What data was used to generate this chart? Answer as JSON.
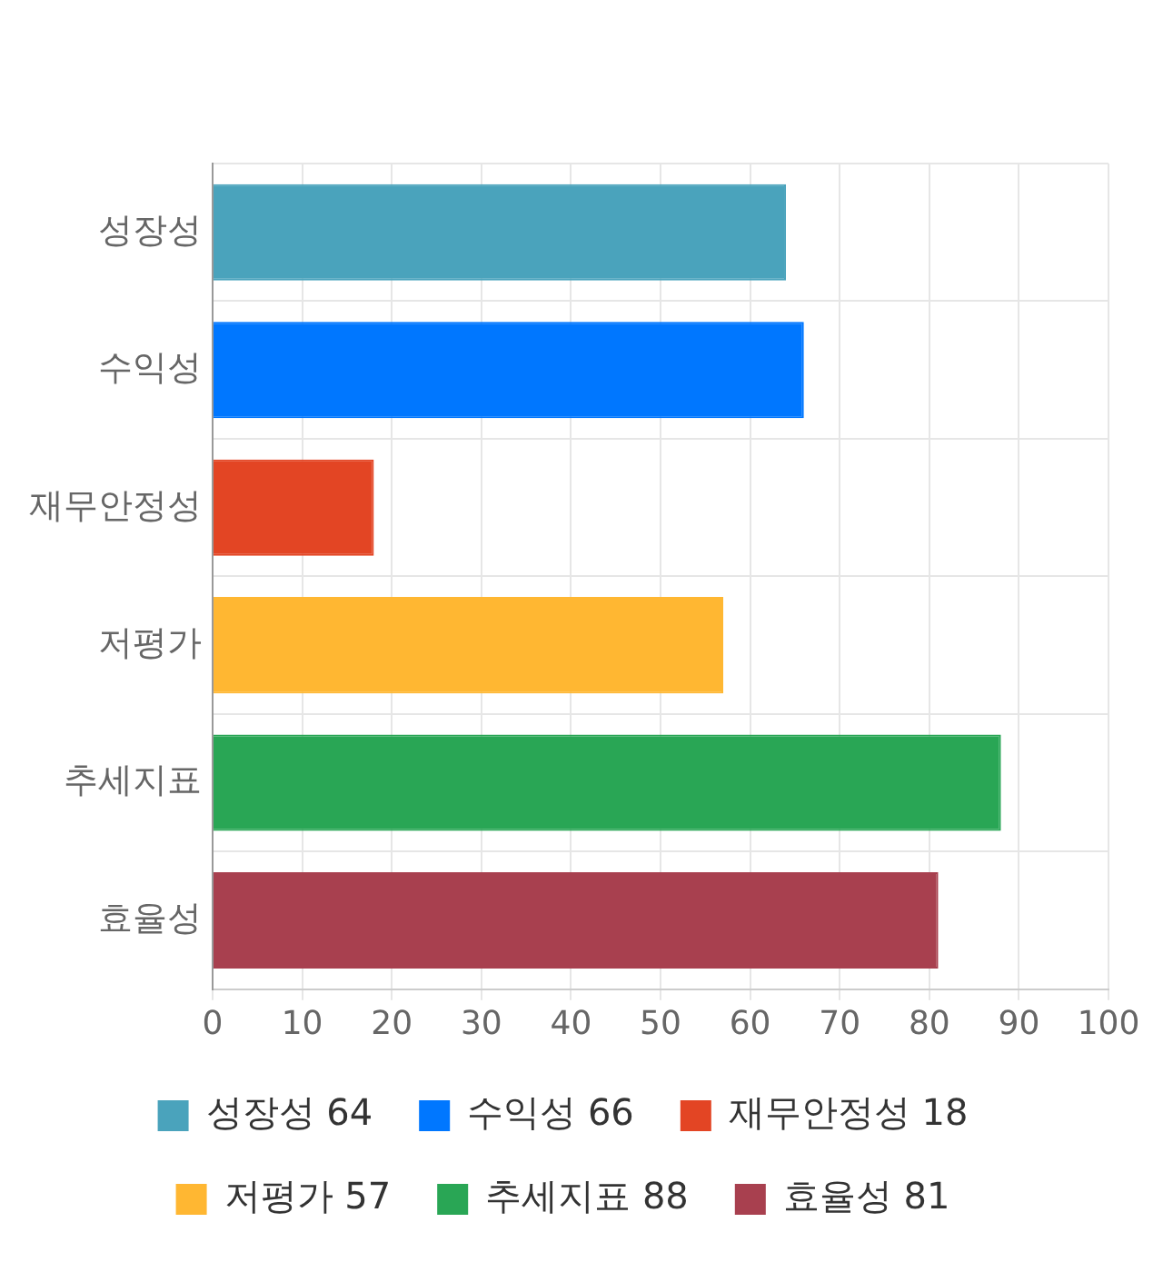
{
  "chart_data": {
    "type": "bar",
    "orientation": "horizontal",
    "categories": [
      "성장성",
      "수익성",
      "재무안정성",
      "저평가",
      "추세지표",
      "효율성"
    ],
    "series": [
      {
        "name": "성장성 64",
        "color": "#4aa3bc",
        "values": [
          64,
          null,
          null,
          null,
          null,
          null
        ]
      },
      {
        "name": "수익성 66",
        "color": "#0077ff",
        "values": [
          null,
          66,
          null,
          null,
          null,
          null
        ]
      },
      {
        "name": "재무안정성 18",
        "color": "#e34524",
        "values": [
          null,
          null,
          18,
          null,
          null,
          null
        ]
      },
      {
        "name": "저평가 57",
        "color": "#ffb732",
        "values": [
          null,
          null,
          null,
          57,
          null,
          null
        ]
      },
      {
        "name": "추세지표 88",
        "color": "#29a655",
        "values": [
          null,
          null,
          null,
          null,
          88,
          null
        ]
      },
      {
        "name": "효율성 81",
        "color": "#a8404f",
        "values": [
          null,
          null,
          null,
          null,
          null,
          81
        ]
      }
    ],
    "xlim": [
      0,
      100
    ],
    "xticks": [
      0,
      10,
      20,
      30,
      40,
      50,
      60,
      70,
      80,
      90,
      100
    ],
    "grid": true,
    "legend": "bottom"
  }
}
